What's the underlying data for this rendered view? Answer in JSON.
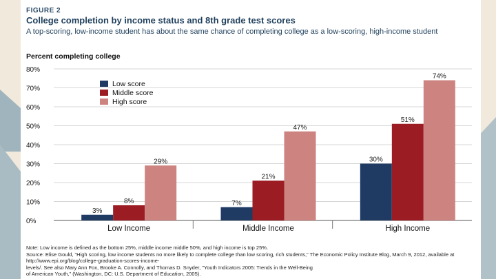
{
  "figure_label": "FIGURE 2",
  "chart_data": {
    "type": "bar",
    "title": "College completion by income status and 8th grade test scores",
    "subtitle": "A top-scoring, low-income student has about the same chance of completing college as a low-scoring, high-income student",
    "ylabel": "Percent completing college",
    "xlabel": "",
    "ylim": [
      0,
      80
    ],
    "yticks": [
      "0%",
      "10%",
      "20%",
      "30%",
      "40%",
      "50%",
      "60%",
      "70%",
      "80%"
    ],
    "categories": [
      "Low Income",
      "Middle Income",
      "High Income"
    ],
    "series": [
      {
        "name": "Low score",
        "color": "#1f3a63",
        "values": [
          3,
          7,
          30
        ],
        "labels": [
          "3%",
          "7%",
          "30%"
        ]
      },
      {
        "name": "Middle score",
        "color": "#9b1c22",
        "values": [
          8,
          21,
          51
        ],
        "labels": [
          "8%",
          "21%",
          "51%"
        ]
      },
      {
        "name": "High score",
        "color": "#cd8481",
        "values": [
          29,
          47,
          74
        ],
        "labels": [
          "29%",
          "47%",
          "74%"
        ]
      }
    ],
    "legend_position": "top-left",
    "grid": true
  },
  "notes": {
    "note": "Note: Low income is defined as the bottom 25%, middle income middle 50%, and high income is top 25%.",
    "source_1": "Source: Elise Gould, \"High scoring, low income students no more likely to complete college than low scoring, rich students,\" The Economic Policy Institute Blog, March 9, 2012, available at http://www.epi.org/blog/college-graduation-scores-income-",
    "source_2": "levels/. See also Mary Ann Fox, Brooke A. Connolly, and Thomas D. Snyder, \"Youth Indicators 2005: Trends in the Well-Being",
    "source_3": "of American Youth,\" (Washington, DC: U.S. Department of Education, 2005)."
  }
}
